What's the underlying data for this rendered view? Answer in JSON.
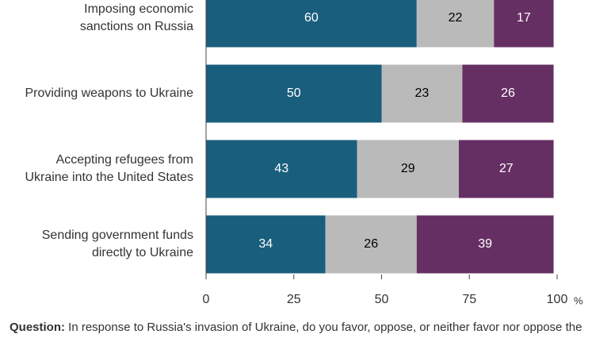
{
  "chart_data": {
    "type": "stacked_barh",
    "categories": [
      "Imposing economic\nsanctions on Russia",
      "Providing weapons to Ukraine",
      "Accepting refugees from\nUkraine into the United States",
      "Sending government funds\ndirectly to Ukraine"
    ],
    "series": [
      {
        "color": "#1a5e7e",
        "label_color": "#ffffff",
        "values": [
          60,
          50,
          43,
          34
        ]
      },
      {
        "color": "#bababa",
        "label_color": "#000000",
        "values": [
          22,
          23,
          29,
          26
        ]
      },
      {
        "color": "#662f63",
        "label_color": "#ffffff",
        "values": [
          17,
          26,
          27,
          39
        ]
      }
    ],
    "xlim": [
      0,
      100
    ],
    "xticks": [
      0,
      25,
      50,
      75,
      100
    ],
    "xlabel": "%",
    "question_label": "Question:",
    "question": "In response to Russia's invasion of Ukraine, do you favor, oppose, or neither favor nor oppose the United States doing each of the following?"
  }
}
